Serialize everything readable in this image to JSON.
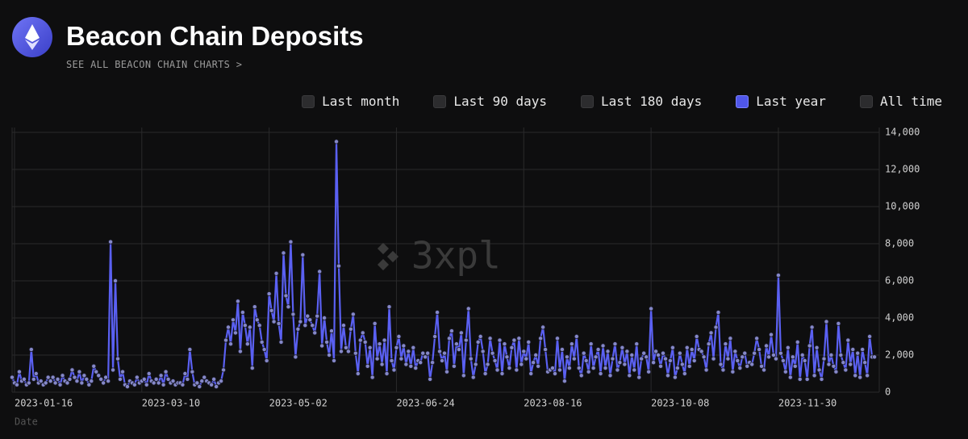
{
  "header": {
    "title": "Beacon Chain Deposits",
    "link": "SEE ALL BEACON CHAIN CHARTS >"
  },
  "ranges": {
    "options": [
      "Last month",
      "Last 90 days",
      "Last 180 days",
      "Last year",
      "All time"
    ],
    "active_index": 3
  },
  "chart_data": {
    "type": "line",
    "watermark": "3xpl",
    "x_label": "Date",
    "color": "#5a60f2",
    "grid": true,
    "xlim": [
      "2023-01-15",
      "2024-01-11"
    ],
    "xticks": [
      "2023-01-16",
      "2023-03-10",
      "2023-05-02",
      "2023-06-24",
      "2023-08-16",
      "2023-10-08",
      "2023-11-30"
    ],
    "ylim": [
      0,
      14000
    ],
    "yticks": [
      0,
      {
        "value": 2000,
        "label": "2,000"
      },
      {
        "value": 4000,
        "label": "4,000"
      },
      {
        "value": 6000,
        "label": "6,000"
      },
      {
        "value": 8000,
        "label": "8,000"
      },
      {
        "value": 10000,
        "label": "10,000"
      },
      {
        "value": 12000,
        "label": "12,000"
      },
      {
        "value": 14000,
        "label": "14,000"
      }
    ],
    "x": [
      "2023-01-15",
      "2023-01-16",
      "2023-01-17",
      "2023-01-18",
      "2023-01-19",
      "2023-01-20",
      "2023-01-21",
      "2023-01-22",
      "2023-01-23",
      "2023-01-24",
      "2023-01-25",
      "2023-01-26",
      "2023-01-27",
      "2023-01-28",
      "2023-01-29",
      "2023-01-30",
      "2023-01-31",
      "2023-02-01",
      "2023-02-02",
      "2023-02-03",
      "2023-02-04",
      "2023-02-05",
      "2023-02-06",
      "2023-02-07",
      "2023-02-08",
      "2023-02-09",
      "2023-02-10",
      "2023-02-11",
      "2023-02-12",
      "2023-02-13",
      "2023-02-14",
      "2023-02-15",
      "2023-02-16",
      "2023-02-17",
      "2023-02-18",
      "2023-02-19",
      "2023-02-20",
      "2023-02-21",
      "2023-02-22",
      "2023-02-23",
      "2023-02-24",
      "2023-02-25",
      "2023-02-26",
      "2023-02-27",
      "2023-02-28",
      "2023-03-01",
      "2023-03-02",
      "2023-03-03",
      "2023-03-04",
      "2023-03-05",
      "2023-03-06",
      "2023-03-07",
      "2023-03-08",
      "2023-03-09",
      "2023-03-10",
      "2023-03-11",
      "2023-03-12",
      "2023-03-13",
      "2023-03-14",
      "2023-03-15",
      "2023-03-16",
      "2023-03-17",
      "2023-03-18",
      "2023-03-19",
      "2023-03-20",
      "2023-03-21",
      "2023-03-22",
      "2023-03-23",
      "2023-03-24",
      "2023-03-25",
      "2023-03-26",
      "2023-03-27",
      "2023-03-28",
      "2023-03-29",
      "2023-03-30",
      "2023-03-31",
      "2023-04-01",
      "2023-04-02",
      "2023-04-03",
      "2023-04-04",
      "2023-04-05",
      "2023-04-06",
      "2023-04-07",
      "2023-04-08",
      "2023-04-09",
      "2023-04-10",
      "2023-04-11",
      "2023-04-12",
      "2023-04-13",
      "2023-04-14",
      "2023-04-15",
      "2023-04-16",
      "2023-04-17",
      "2023-04-18",
      "2023-04-19",
      "2023-04-20",
      "2023-04-21",
      "2023-04-22",
      "2023-04-23",
      "2023-04-24",
      "2023-04-25",
      "2023-04-26",
      "2023-04-27",
      "2023-04-28",
      "2023-04-29",
      "2023-04-30",
      "2023-05-01",
      "2023-05-02",
      "2023-05-03",
      "2023-05-04",
      "2023-05-05",
      "2023-05-06",
      "2023-05-07",
      "2023-05-08",
      "2023-05-09",
      "2023-05-10",
      "2023-05-11",
      "2023-05-12",
      "2023-05-13",
      "2023-05-14",
      "2023-05-15",
      "2023-05-16",
      "2023-05-17",
      "2023-05-18",
      "2023-05-19",
      "2023-05-20",
      "2023-05-21",
      "2023-05-22",
      "2023-05-23",
      "2023-05-24",
      "2023-05-25",
      "2023-05-26",
      "2023-05-27",
      "2023-05-28",
      "2023-05-29",
      "2023-05-30",
      "2023-05-31",
      "2023-06-01",
      "2023-06-02",
      "2023-06-03",
      "2023-06-04",
      "2023-06-05",
      "2023-06-06",
      "2023-06-07",
      "2023-06-08",
      "2023-06-09",
      "2023-06-10",
      "2023-06-11",
      "2023-06-12",
      "2023-06-13",
      "2023-06-14",
      "2023-06-15",
      "2023-06-16",
      "2023-06-17",
      "2023-06-18",
      "2023-06-19",
      "2023-06-20",
      "2023-06-21",
      "2023-06-22",
      "2023-06-23",
      "2023-06-24",
      "2023-06-25",
      "2023-06-26",
      "2023-06-27",
      "2023-06-28",
      "2023-06-29",
      "2023-06-30",
      "2023-07-01",
      "2023-07-02",
      "2023-07-03",
      "2023-07-04",
      "2023-07-05",
      "2023-07-06",
      "2023-07-07",
      "2023-07-08",
      "2023-07-09",
      "2023-07-10",
      "2023-07-11",
      "2023-07-12",
      "2023-07-13",
      "2023-07-14",
      "2023-07-15",
      "2023-07-16",
      "2023-07-17",
      "2023-07-18",
      "2023-07-19",
      "2023-07-20",
      "2023-07-21",
      "2023-07-22",
      "2023-07-23",
      "2023-07-24",
      "2023-07-25",
      "2023-07-26",
      "2023-07-27",
      "2023-07-28",
      "2023-07-29",
      "2023-07-30",
      "2023-07-31",
      "2023-08-01",
      "2023-08-02",
      "2023-08-03",
      "2023-08-04",
      "2023-08-05",
      "2023-08-06",
      "2023-08-07",
      "2023-08-08",
      "2023-08-09",
      "2023-08-10",
      "2023-08-11",
      "2023-08-12",
      "2023-08-13",
      "2023-08-14",
      "2023-08-15",
      "2023-08-16",
      "2023-08-17",
      "2023-08-18",
      "2023-08-19",
      "2023-08-20",
      "2023-08-21",
      "2023-08-22",
      "2023-08-23",
      "2023-08-24",
      "2023-08-25",
      "2023-08-26",
      "2023-08-27",
      "2023-08-28",
      "2023-08-29",
      "2023-08-30",
      "2023-08-31",
      "2023-09-01",
      "2023-09-02",
      "2023-09-03",
      "2023-09-04",
      "2023-09-05",
      "2023-09-06",
      "2023-09-07",
      "2023-09-08",
      "2023-09-09",
      "2023-09-10",
      "2023-09-11",
      "2023-09-12",
      "2023-09-13",
      "2023-09-14",
      "2023-09-15",
      "2023-09-16",
      "2023-09-17",
      "2023-09-18",
      "2023-09-19",
      "2023-09-20",
      "2023-09-21",
      "2023-09-22",
      "2023-09-23",
      "2023-09-24",
      "2023-09-25",
      "2023-09-26",
      "2023-09-27",
      "2023-09-28",
      "2023-09-29",
      "2023-09-30",
      "2023-10-01",
      "2023-10-02",
      "2023-10-03",
      "2023-10-04",
      "2023-10-05",
      "2023-10-06",
      "2023-10-07",
      "2023-10-08",
      "2023-10-09",
      "2023-10-10",
      "2023-10-11",
      "2023-10-12",
      "2023-10-13",
      "2023-10-14",
      "2023-10-15",
      "2023-10-16",
      "2023-10-17",
      "2023-10-18",
      "2023-10-19",
      "2023-10-20",
      "2023-10-21",
      "2023-10-22",
      "2023-10-23",
      "2023-10-24",
      "2023-10-25",
      "2023-10-26",
      "2023-10-27",
      "2023-10-28",
      "2023-10-29",
      "2023-10-30",
      "2023-10-31",
      "2023-11-01",
      "2023-11-02",
      "2023-11-03",
      "2023-11-04",
      "2023-11-05",
      "2023-11-06",
      "2023-11-07",
      "2023-11-08",
      "2023-11-09",
      "2023-11-10",
      "2023-11-11",
      "2023-11-12",
      "2023-11-13",
      "2023-11-14",
      "2023-11-15",
      "2023-11-16",
      "2023-11-17",
      "2023-11-18",
      "2023-11-19",
      "2023-11-20",
      "2023-11-21",
      "2023-11-22",
      "2023-11-23",
      "2023-11-24",
      "2023-11-25",
      "2023-11-26",
      "2023-11-27",
      "2023-11-28",
      "2023-11-29",
      "2023-11-30",
      "2023-12-01",
      "2023-12-02",
      "2023-12-03",
      "2023-12-04",
      "2023-12-05",
      "2023-12-06",
      "2023-12-07",
      "2023-12-08",
      "2023-12-09",
      "2023-12-10",
      "2023-12-11",
      "2023-12-12",
      "2023-12-13",
      "2023-12-14",
      "2023-12-15",
      "2023-12-16",
      "2023-12-17",
      "2023-12-18",
      "2023-12-19",
      "2023-12-20",
      "2023-12-21",
      "2023-12-22",
      "2023-12-23",
      "2023-12-24",
      "2023-12-25",
      "2023-12-26",
      "2023-12-27",
      "2023-12-28",
      "2023-12-29",
      "2023-12-30",
      "2023-12-31",
      "2024-01-01",
      "2024-01-02",
      "2024-01-03",
      "2024-01-04",
      "2024-01-05",
      "2024-01-06",
      "2024-01-07",
      "2024-01-08",
      "2024-01-09"
    ],
    "values": [
      800,
      500,
      400,
      1100,
      600,
      700,
      400,
      500,
      2300,
      700,
      1000,
      500,
      600,
      400,
      500,
      800,
      600,
      800,
      500,
      700,
      400,
      900,
      600,
      500,
      700,
      1200,
      800,
      600,
      1100,
      500,
      900,
      700,
      400,
      600,
      1400,
      1100,
      900,
      700,
      500,
      800,
      600,
      8100,
      1200,
      6000,
      1800,
      700,
      1100,
      400,
      300,
      600,
      500,
      400,
      800,
      500,
      600,
      700,
      400,
      1000,
      600,
      500,
      700,
      500,
      900,
      400,
      1100,
      700,
      500,
      600,
      400,
      500,
      500,
      400,
      1000,
      700,
      2300,
      1100,
      400,
      500,
      300,
      600,
      800,
      600,
      500,
      400,
      700,
      300,
      500,
      600,
      1200,
      2800,
      3500,
      2600,
      3900,
      3200,
      4900,
      2200,
      4300,
      3600,
      2600,
      3500,
      1300,
      4600,
      3900,
      3600,
      2700,
      2300,
      1700,
      5300,
      4400,
      3800,
      6400,
      3700,
      2700,
      7500,
      5200,
      4600,
      8100,
      4200,
      1900,
      3400,
      3800,
      7400,
      3600,
      4100,
      3900,
      3600,
      3200,
      4100,
      6500,
      2500,
      4000,
      2700,
      2000,
      3300,
      1700,
      13500,
      6800,
      2200,
      3600,
      2400,
      2200,
      3400,
      4200,
      2100,
      1000,
      2800,
      3200,
      2700,
      1400,
      2400,
      800,
      3700,
      1800,
      2600,
      1500,
      2800,
      1000,
      4600,
      1700,
      1200,
      2400,
      3000,
      1800,
      2500,
      1500,
      2200,
      1400,
      2400,
      1300,
      1700,
      1600,
      2100,
      1900,
      2100,
      700,
      1600,
      3000,
      4300,
      2200,
      1700,
      2100,
      1100,
      2900,
      3300,
      1400,
      2600,
      2300,
      3200,
      900,
      2800,
      4500,
      1800,
      800,
      1500,
      2700,
      3000,
      2200,
      1000,
      1500,
      2900,
      2100,
      1700,
      1200,
      2800,
      1000,
      2600,
      1900,
      1300,
      2400,
      2800,
      1200,
      2900,
      1500,
      2200,
      1800,
      2700,
      1000,
      1600,
      2000,
      1400,
      2900,
      3500,
      2300,
      1100,
      1200,
      1300,
      1000,
      2900,
      1200,
      2300,
      600,
      1900,
      1300,
      2600,
      1800,
      3000,
      1300,
      900,
      2100,
      1700,
      1100,
      2600,
      1300,
      1900,
      2300,
      1000,
      2500,
      1300,
      2200,
      900,
      1800,
      2600,
      1200,
      1600,
      2400,
      1500,
      2200,
      900,
      2000,
      1200,
      2600,
      800,
      1800,
      2100,
      1900,
      1100,
      4500,
      1600,
      2200,
      2000,
      1400,
      2100,
      1800,
      900,
      1700,
      2400,
      800,
      1300,
      2100,
      1500,
      1000,
      2400,
      1400,
      2300,
      1700,
      3000,
      2300,
      2200,
      1900,
      1200,
      2600,
      3200,
      1800,
      3500,
      4300,
      1500,
      1200,
      2600,
      1800,
      2900,
      1100,
      2200,
      1700,
      1300,
      1900,
      2100,
      1400,
      1600,
      1500,
      2100,
      2900,
      2300,
      1400,
      1200,
      2500,
      1900,
      3100,
      2000,
      1800,
      6300,
      2100,
      1700,
      1100,
      2400,
      800,
      1900,
      1400,
      2700,
      700,
      2000,
      1700,
      700,
      2500,
      3500,
      900,
      2400,
      1200,
      700,
      1800,
      3800,
      1500,
      2000,
      1400,
      1100,
      3700,
      2000,
      1600,
      1200,
      2800,
      1500,
      2300,
      900,
      2100,
      800,
      2300,
      1600,
      900,
      3000,
      1900,
      1900
    ]
  }
}
